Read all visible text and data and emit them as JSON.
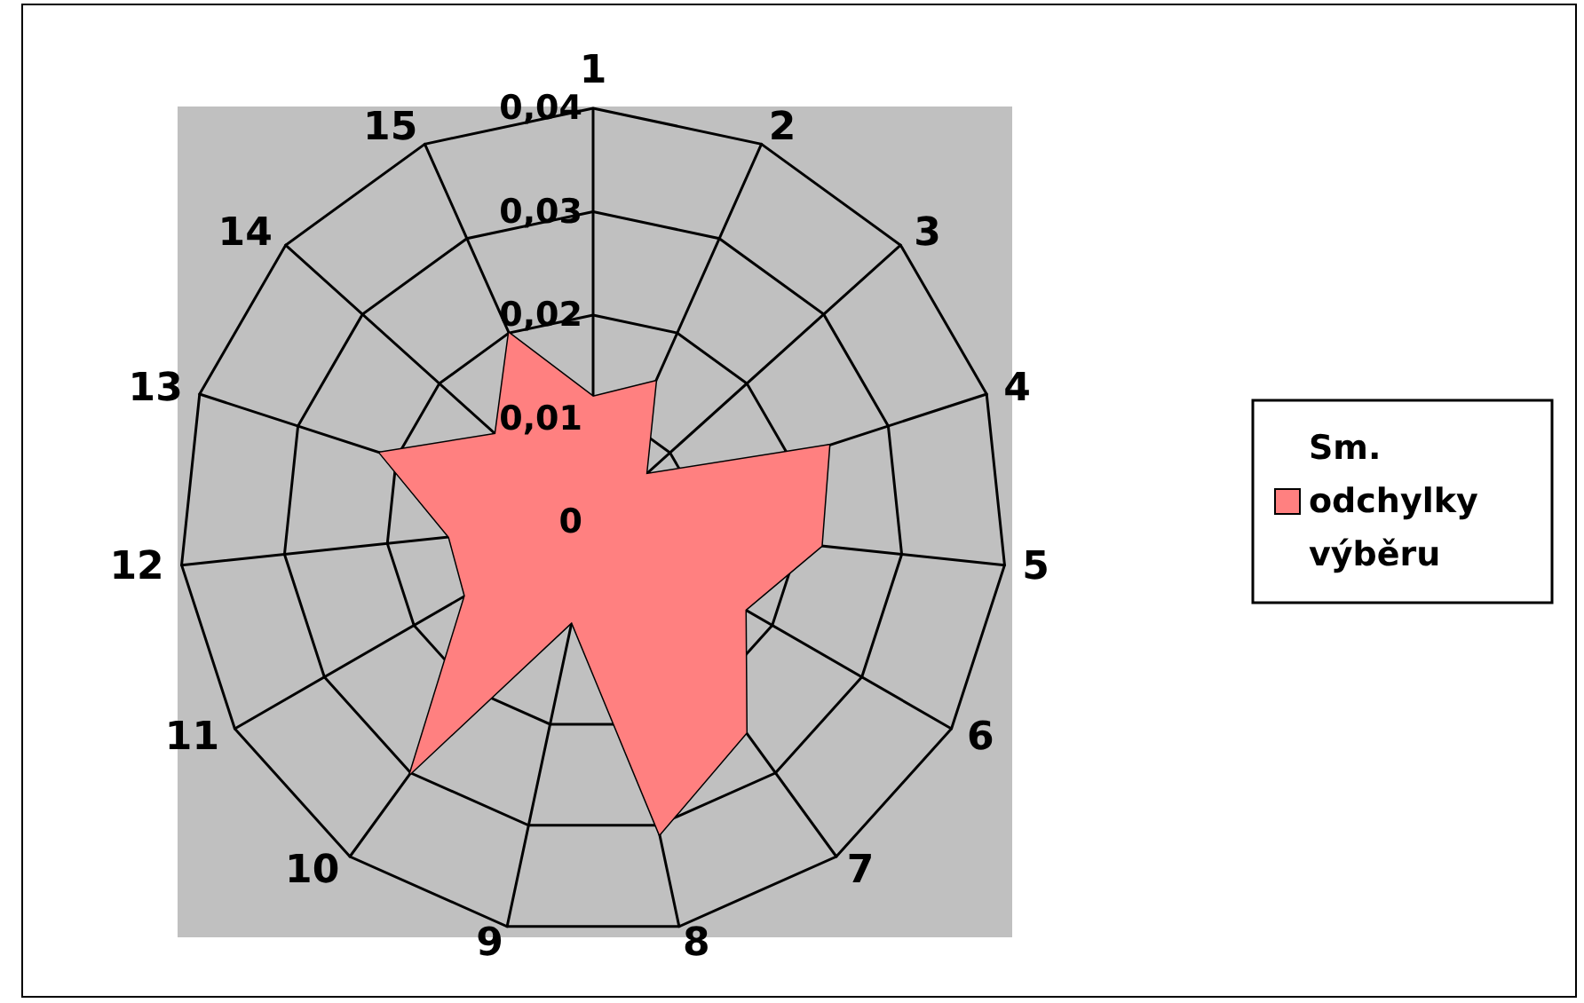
{
  "chart_data": {
    "type": "radar",
    "categories": [
      "1",
      "2",
      "3",
      "4",
      "5",
      "6",
      "7",
      "8",
      "9",
      "10",
      "11",
      "12",
      "13",
      "14",
      "15"
    ],
    "series": [
      {
        "name": "Sm. odchylky výběru",
        "color": "#ff8080",
        "values": [
          0.0121,
          0.0149,
          0.0069,
          0.024,
          0.0222,
          0.017,
          0.0252,
          0.0309,
          0.0099,
          0.0301,
          0.0143,
          0.014,
          0.0217,
          0.0127,
          0.02
        ]
      }
    ],
    "ylim": [
      0,
      0.04
    ],
    "yticks": [
      {
        "value": 0,
        "label": "0"
      },
      {
        "value": 0.01,
        "label": "0,01"
      },
      {
        "value": 0.02,
        "label": "0,02"
      },
      {
        "value": 0.03,
        "label": "0,03"
      },
      {
        "value": 0.04,
        "label": "0,04"
      }
    ],
    "legend": "right"
  }
}
